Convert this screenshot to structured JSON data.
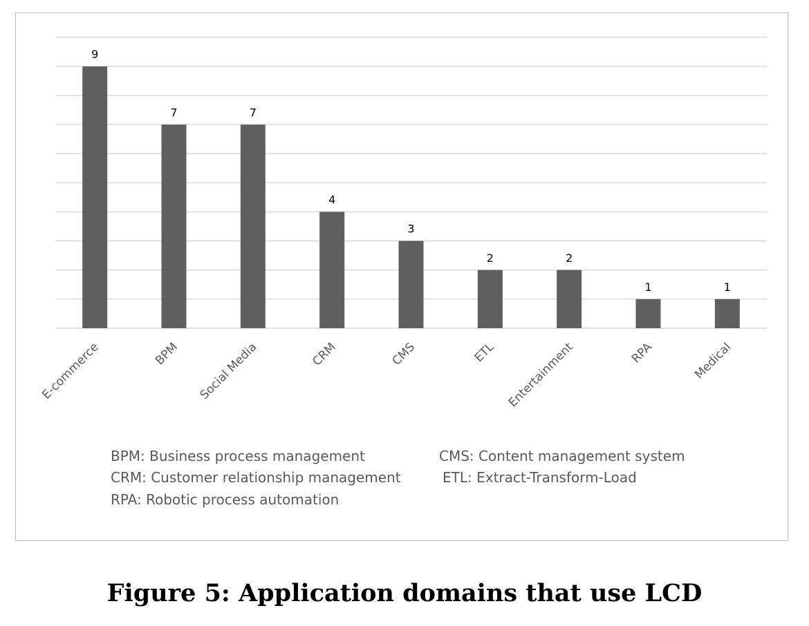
{
  "chart_data": {
    "type": "bar",
    "title": "",
    "xlabel": "",
    "ylabel": "",
    "categories": [
      "E-commerce",
      "BPM",
      "Social Media",
      "CRM",
      "CMS",
      "ETL",
      "Entertainment",
      "RPA",
      "Medical"
    ],
    "values": [
      9,
      7,
      7,
      4,
      3,
      2,
      2,
      1,
      1
    ],
    "ylim": [
      0,
      10
    ],
    "grid": true,
    "legend": "none",
    "bar_color": "#5f5f5f",
    "gridline_color": "#d9d9d9"
  },
  "legend_notes": {
    "bpm": "BPM: Business process management",
    "cms": "CMS: Content management system",
    "crm": "CRM: Customer relationship management",
    "etl": "ETL: Extract-Transform-Load",
    "rpa": "RPA: Robotic process automation"
  },
  "caption": "Figure 5: Application domains that use LCD"
}
